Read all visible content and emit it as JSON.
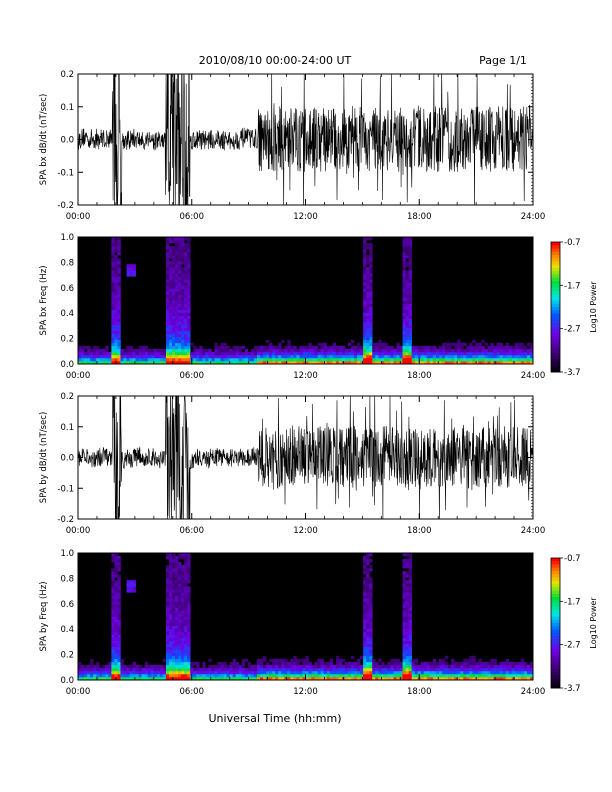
{
  "header": {
    "title": "2010/08/10   00:00-24:00 UT",
    "page": "Page 1/1"
  },
  "xlabel": "Universal Time (hh:mm)",
  "chart_data": [
    {
      "type": "line",
      "ylabel": "SPA bx dB/dt (nT/sec)",
      "xlim": [
        0,
        24
      ],
      "ylim": [
        -0.2,
        0.2
      ],
      "x_ticks": [
        "00:00",
        "06:00",
        "12:00",
        "18:00",
        "24:00"
      ],
      "y_ticks": [
        "-0.2",
        "-0.1",
        "0.0",
        "0.1",
        "0.2"
      ],
      "series_color": "#000000",
      "bursts": [
        {
          "start_hour": 1.8,
          "end_hour": 2.3,
          "amplitude": 0.3
        },
        {
          "start_hour": 4.6,
          "end_hour": 5.9,
          "amplitude": 0.3
        },
        {
          "start_hour": 9.5,
          "end_hour": 23.9,
          "amplitude": 0.1
        }
      ]
    },
    {
      "type": "heatmap",
      "ylabel": "SPA bx Freq (Hz)",
      "xlim": [
        0,
        24
      ],
      "ylim": [
        0,
        1.0
      ],
      "x_ticks": [
        "00:00",
        "06:00",
        "12:00",
        "18:00",
        "24:00"
      ],
      "y_ticks": [
        "0.0",
        "0.2",
        "0.4",
        "0.6",
        "0.8",
        "1.0"
      ],
      "colorbar": {
        "label": "Log10 Power",
        "ticks": [
          "-0.7",
          "-1.7",
          "-2.7",
          "-3.7"
        ],
        "range": [
          -3.7,
          -0.7
        ]
      },
      "enhanced_intervals_hours": [
        [
          1.8,
          2.3
        ],
        [
          4.6,
          5.9
        ],
        [
          15.0,
          15.6
        ],
        [
          17.1,
          17.6
        ]
      ]
    },
    {
      "type": "line",
      "ylabel": "SPA by dB/dt (nT/sec)",
      "xlim": [
        0,
        24
      ],
      "ylim": [
        -0.2,
        0.2
      ],
      "x_ticks": [
        "00:00",
        "06:00",
        "12:00",
        "18:00",
        "24:00"
      ],
      "y_ticks": [
        "-0.2",
        "-0.1",
        "0.0",
        "0.1",
        "0.2"
      ],
      "series_color": "#000000",
      "bursts": [
        {
          "start_hour": 1.8,
          "end_hour": 2.3,
          "amplitude": 0.3
        },
        {
          "start_hour": 4.6,
          "end_hour": 5.9,
          "amplitude": 0.3
        },
        {
          "start_hour": 9.5,
          "end_hour": 23.9,
          "amplitude": 0.1
        }
      ]
    },
    {
      "type": "heatmap",
      "ylabel": "SPA by Freq (Hz)",
      "xlim": [
        0,
        24
      ],
      "ylim": [
        0,
        1.0
      ],
      "x_ticks": [
        "00:00",
        "06:00",
        "12:00",
        "18:00",
        "24:00"
      ],
      "y_ticks": [
        "0.0",
        "0.2",
        "0.4",
        "0.6",
        "0.8",
        "1.0"
      ],
      "colorbar": {
        "label": "Log10 Power",
        "ticks": [
          "-0.7",
          "-1.7",
          "-2.7",
          "-3.7"
        ],
        "range": [
          -3.7,
          -0.7
        ]
      },
      "enhanced_intervals_hours": [
        [
          1.8,
          2.3
        ],
        [
          4.6,
          5.9
        ],
        [
          15.0,
          15.6
        ],
        [
          17.1,
          17.6
        ]
      ]
    }
  ]
}
